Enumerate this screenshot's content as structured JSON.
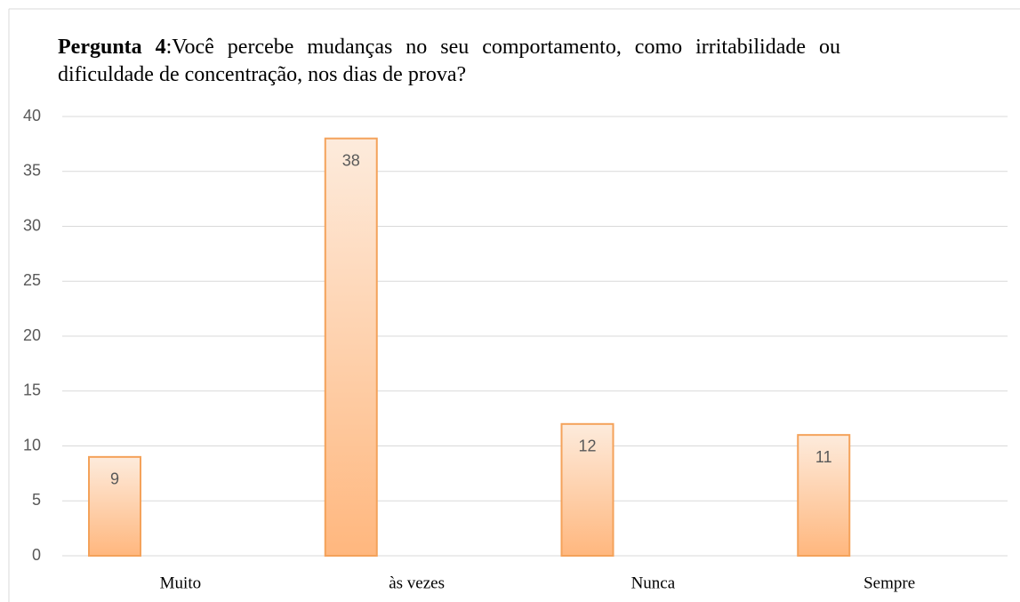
{
  "chart_data": {
    "type": "bar",
    "title_bold": "Pergunta 4",
    "title": ":Você percebe mudanças no seu comportamento, como irritabilidade ou dificuldade de concentração, nos dias de prova?",
    "categories": [
      "Muito",
      "às vezes",
      "Nunca",
      "Sempre"
    ],
    "values": [
      9,
      38,
      12,
      11
    ],
    "color": "#f4a25a",
    "ylim": [
      0,
      40
    ],
    "yticks": [
      0,
      5,
      10,
      15,
      20,
      25,
      30,
      35,
      40
    ],
    "grid": true
  }
}
